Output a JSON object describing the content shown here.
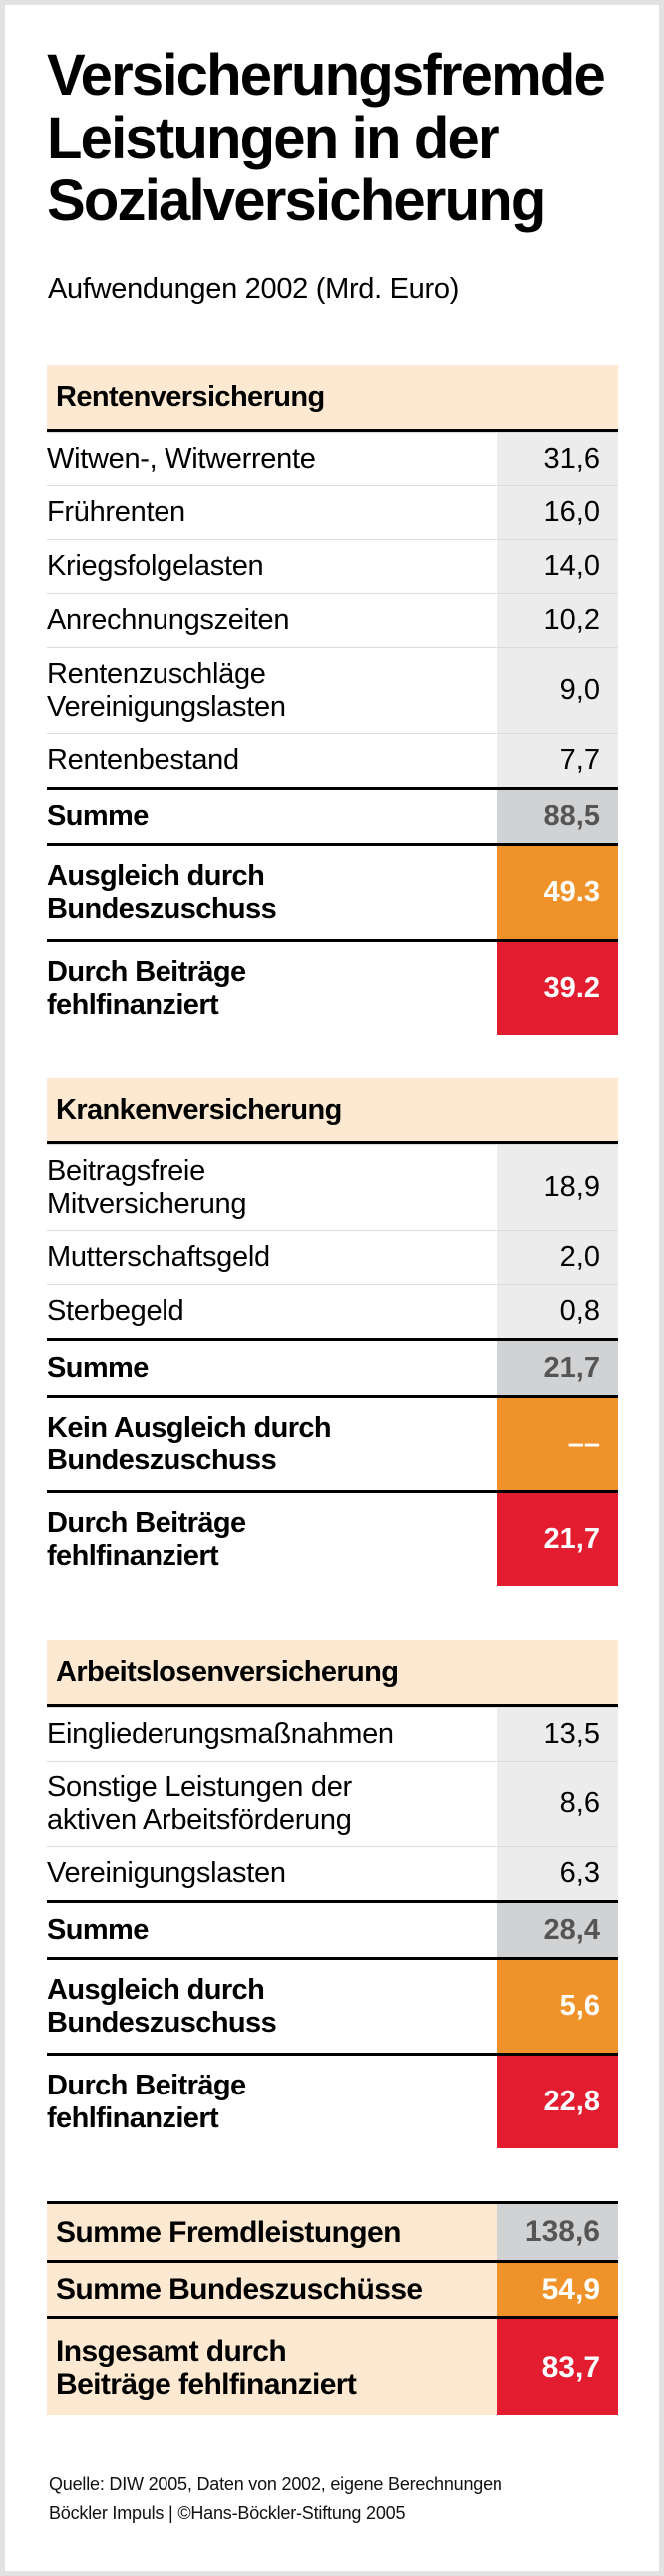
{
  "title_lines": [
    "Versicherungsfremde",
    "Leistungen in der",
    "Sozialversicherung"
  ],
  "subtitle": "Aufwendungen 2002 (Mrd. Euro)",
  "colors": {
    "header_band": "#fde9d1",
    "value_bg": "#ececec",
    "sum_bg": "#d1d2d4",
    "federal_subsidy": "#f0922a",
    "contribution_financed": "#e31d2f"
  },
  "sections": [
    {
      "heading": "Rentenversicherung",
      "rows": [
        {
          "label": "Witwen-, Witwerrente",
          "value": "31,6"
        },
        {
          "label": "Frührenten",
          "value": "16,0"
        },
        {
          "label": "Kriegsfolgelasten",
          "value": "14,0"
        },
        {
          "label": "Anrechnungszeiten",
          "value": "10,2"
        },
        {
          "label": "Rentenzuschläge\nVereinigungslasten",
          "value": "9,0"
        },
        {
          "label": "Rentenbestand",
          "value": "7,7"
        }
      ],
      "sum": {
        "label": "Summe",
        "value": "88,5"
      },
      "subsidy": {
        "label": "Ausgleich durch\nBundeszuschuss",
        "value": "49.3"
      },
      "contribution": {
        "label": "Durch Beiträge\nfehlfinanziert",
        "value": "39.2"
      }
    },
    {
      "heading": "Krankenversicherung",
      "rows": [
        {
          "label": "Beitragsfreie\nMitversicherung",
          "value": "18,9"
        },
        {
          "label": "Mutterschaftsgeld",
          "value": "2,0"
        },
        {
          "label": "Sterbegeld",
          "value": "0,8"
        }
      ],
      "sum": {
        "label": "Summe",
        "value": "21,7"
      },
      "subsidy": {
        "label": "Kein Ausgleich durch\nBundeszuschuss",
        "value": "––"
      },
      "contribution": {
        "label": "Durch Beiträge\nfehlfinanziert",
        "value": "21,7"
      }
    },
    {
      "heading": "Arbeitslosenversicherung",
      "rows": [
        {
          "label": "Eingliederungsmaßnahmen",
          "value": "13,5"
        },
        {
          "label": "Sonstige Leistungen der\naktiven Arbeitsförderung",
          "value": "8,6"
        },
        {
          "label": "Vereinigungslasten",
          "value": "6,3"
        }
      ],
      "sum": {
        "label": "Summe",
        "value": "28,4"
      },
      "subsidy": {
        "label": "Ausgleich durch\nBundeszuschuss",
        "value": "5,6"
      },
      "contribution": {
        "label": "Durch Beiträge\nfehlfinanziert",
        "value": "22,8"
      }
    }
  ],
  "totals": [
    {
      "label": "Summe Fremdleistungen",
      "value": "138,6",
      "style": "gray"
    },
    {
      "label": "Summe Bundeszuschüsse",
      "value": "54,9",
      "style": "orange"
    },
    {
      "label": "Insgesamt durch\nBeiträge fehlfinanziert",
      "value": "83,7",
      "style": "red"
    }
  ],
  "footer": {
    "source": "Quelle: DIW 2005, Daten von 2002, eigene Berechnungen",
    "copyright": "Böckler Impuls | ©Hans-Böckler-Stiftung 2005"
  }
}
